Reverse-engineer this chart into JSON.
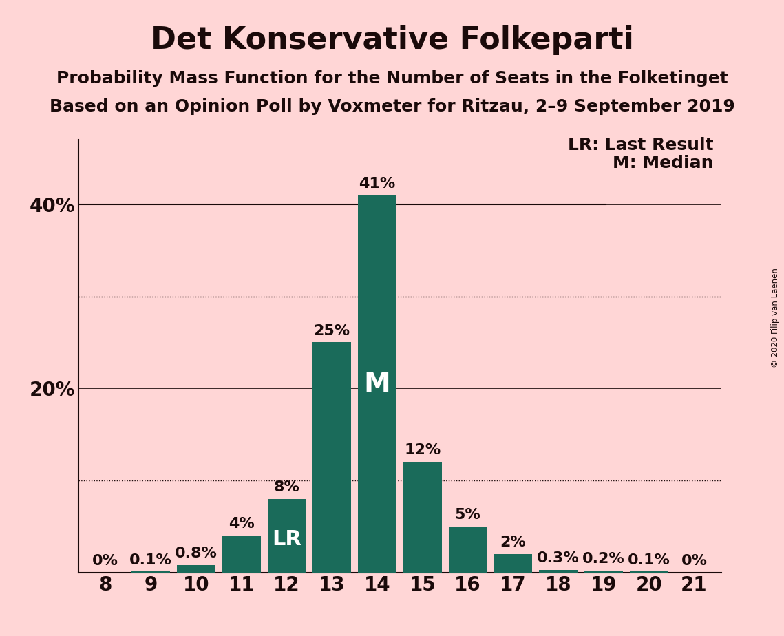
{
  "title": "Det Konservative Folkeparti",
  "subtitle1": "Probability Mass Function for the Number of Seats in the Folketinget",
  "subtitle2": "Based on an Opinion Poll by Voxmeter for Ritzau, 2–9 September 2019",
  "copyright": "© 2020 Filip van Laenen",
  "seats": [
    8,
    9,
    10,
    11,
    12,
    13,
    14,
    15,
    16,
    17,
    18,
    19,
    20,
    21
  ],
  "probabilities": [
    0.0,
    0.1,
    0.8,
    4.0,
    8.0,
    25.0,
    41.0,
    12.0,
    5.0,
    2.0,
    0.3,
    0.2,
    0.1,
    0.0
  ],
  "bar_color": "#1a6b5a",
  "background_color": "#FFD6D6",
  "text_color": "#1a0a0a",
  "last_result_seat": 12,
  "median_seat": 14,
  "solid_gridlines": [
    20,
    40
  ],
  "dotted_gridlines": [
    10,
    30
  ],
  "lr_label": "LR",
  "m_label": "M",
  "legend_lr": "LR: Last Result",
  "legend_m": "M: Median",
  "ylim": [
    0,
    47
  ],
  "title_fontsize": 32,
  "subtitle_fontsize": 18,
  "axis_label_fontsize": 20,
  "legend_fontsize": 18,
  "bar_annotation_fontsize": 16,
  "inside_label_fontsize_lr": 22,
  "inside_label_fontsize_m": 28
}
